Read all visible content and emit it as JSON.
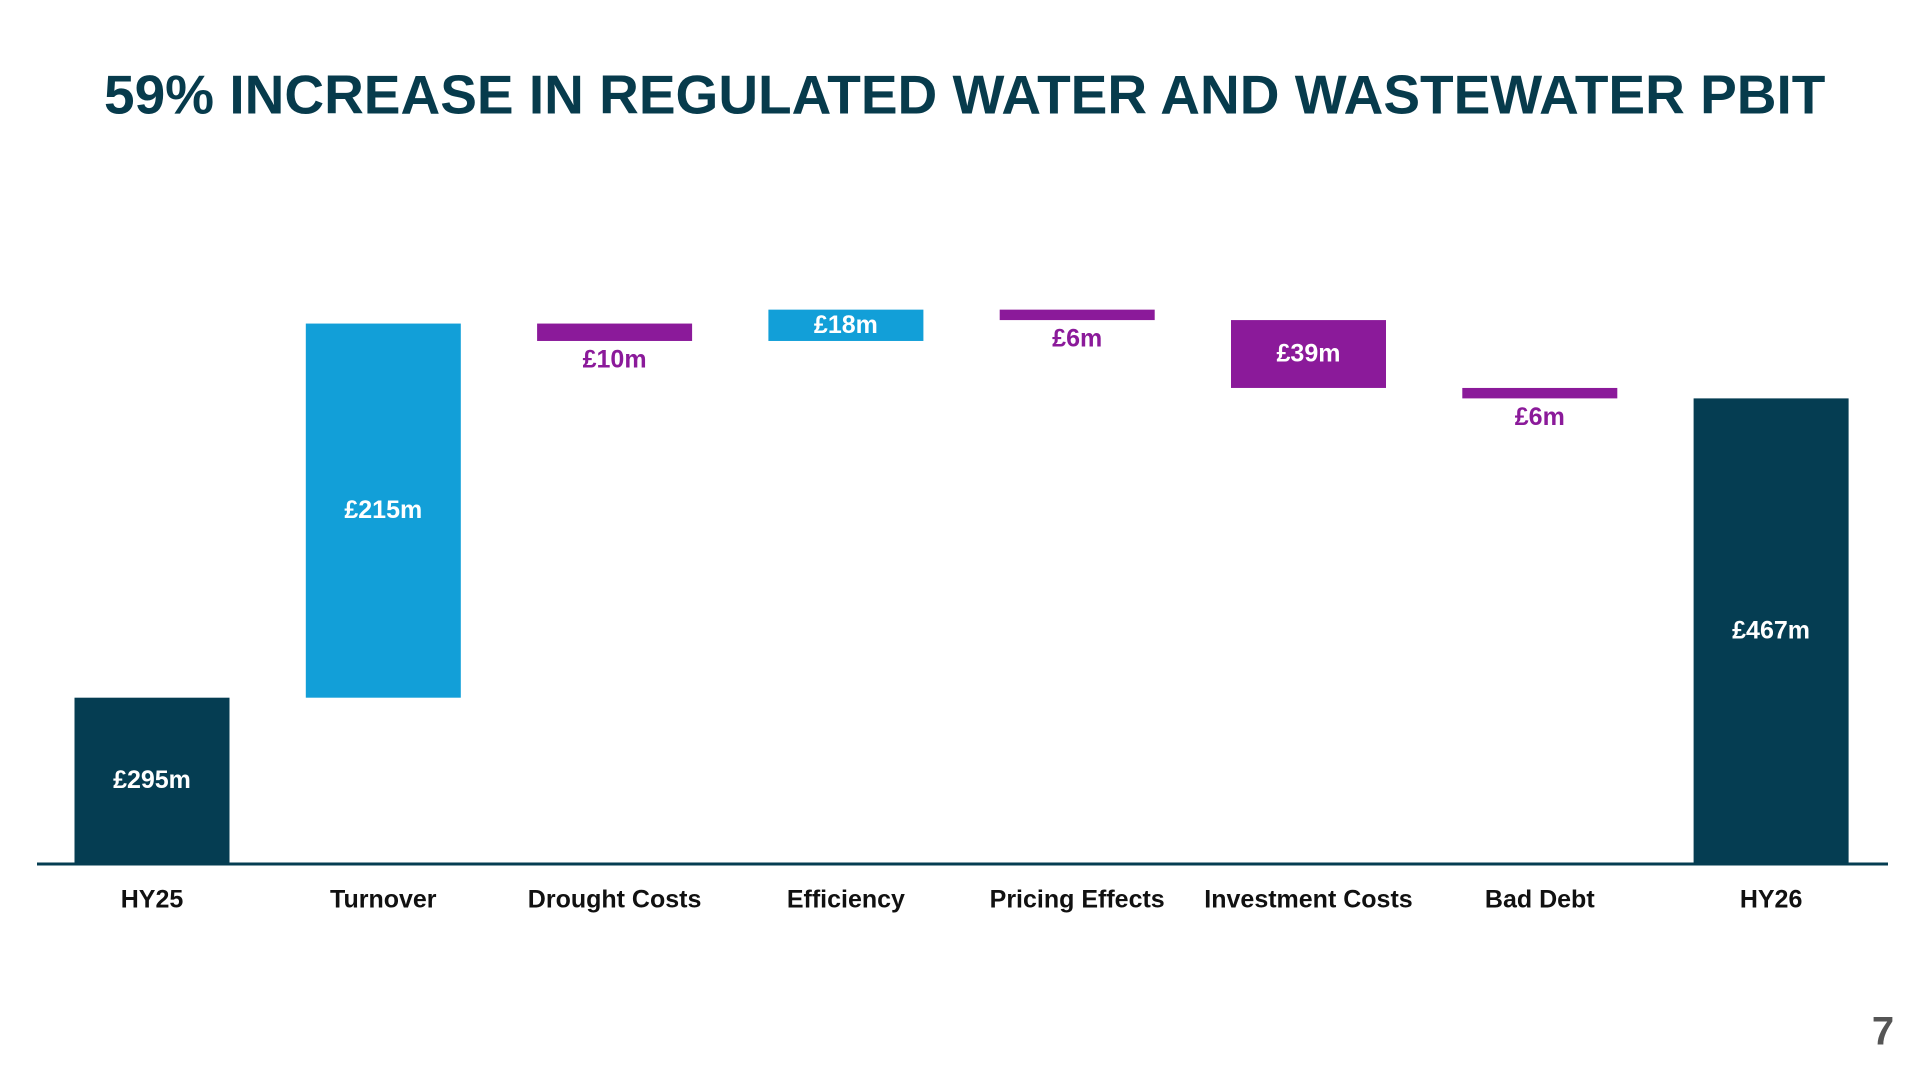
{
  "chart_data": {
    "type": "waterfall",
    "title": "59% INCREASE IN REGULATED WATER AND WASTEWATER PBIT",
    "categories": [
      "HY25",
      "Turnover",
      "Drought Costs",
      "Efficiency",
      "Pricing Effects",
      "Investment Costs",
      "Bad Debt",
      "HY26"
    ],
    "values": [
      295,
      215,
      -10,
      18,
      -6,
      -39,
      -6,
      467
    ],
    "value_labels": [
      "£295m",
      "£215m",
      "£10m",
      "£18m",
      "£6m",
      "£39m",
      "£6m",
      "£467m"
    ],
    "measure": [
      "absolute",
      "relative",
      "relative",
      "relative",
      "relative",
      "relative",
      "relative",
      "total"
    ],
    "colors": {
      "total": "#053d52",
      "increase": "#129fd8",
      "decrease": "#8b1a9a"
    },
    "ylim": [
      200,
      554
    ],
    "page_number": "7"
  }
}
